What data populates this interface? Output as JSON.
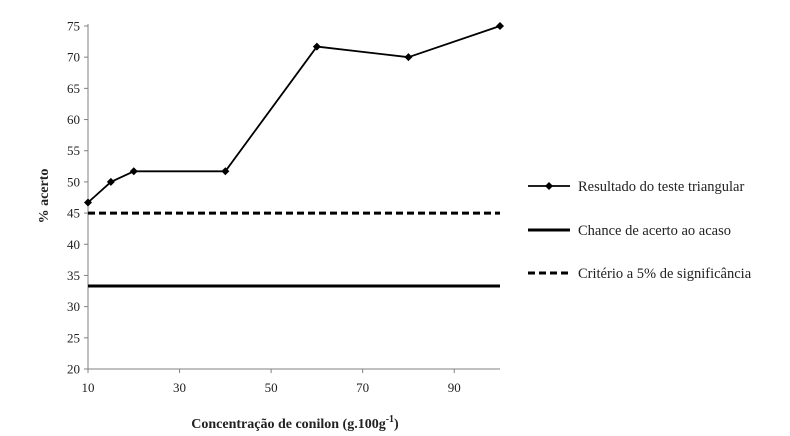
{
  "chart_data": {
    "type": "line",
    "title": "",
    "xlabel": "Concentração de conilon (g.100g",
    "xlabel_sup": "-1",
    "xlabel_close": ")",
    "ylabel": "% acerto",
    "xlim": [
      10,
      100
    ],
    "ylim": [
      20,
      75
    ],
    "x_ticks": [
      "10",
      "30",
      "50",
      "70",
      "90"
    ],
    "y_ticks": [
      "20",
      "25",
      "30",
      "35",
      "40",
      "45",
      "50",
      "55",
      "60",
      "65",
      "70",
      "75"
    ],
    "grid": false,
    "legend_position": "right",
    "series": [
      {
        "name": "Resultado do teste triangular",
        "style": "solid-markers",
        "x": [
          10,
          15,
          20,
          40,
          60,
          80,
          100
        ],
        "y": [
          46.7,
          50,
          51.7,
          51.7,
          71.7,
          70,
          75
        ]
      },
      {
        "name": "Chance de acerto ao acaso",
        "style": "solid-thick",
        "x": [
          10,
          100
        ],
        "y": [
          33.3,
          33.3
        ]
      },
      {
        "name": "Critério a 5% de significância",
        "style": "dashed",
        "x": [
          10,
          100
        ],
        "y": [
          45,
          45
        ]
      }
    ],
    "colors": {
      "line": "#000000",
      "axis": "#808080"
    }
  }
}
